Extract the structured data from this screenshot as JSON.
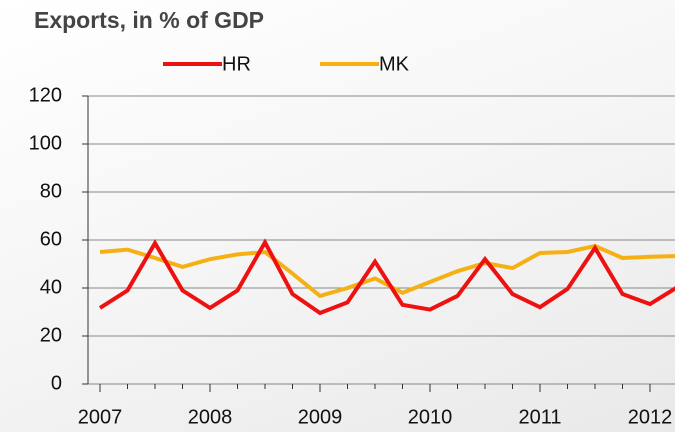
{
  "chart_data": {
    "type": "line",
    "title": "Exports, in % of GDP",
    "categories": [
      "2007",
      null,
      null,
      null,
      "2008",
      null,
      null,
      null,
      "2009",
      null,
      null,
      null,
      "2010",
      null,
      null,
      null,
      "2011",
      null,
      null,
      null,
      "2012",
      null
    ],
    "series": [
      {
        "name": "HR",
        "color": "#ee1111",
        "values": [
          31.7,
          39,
          58.7,
          39,
          31.7,
          39,
          59,
          37.5,
          29.6,
          34,
          51,
          33,
          31,
          36.7,
          52,
          37.5,
          32,
          39.6,
          56.7,
          37.5,
          33.3,
          40.4
        ]
      },
      {
        "name": "MK",
        "color": "#f5b014",
        "values": [
          55,
          56,
          52.5,
          48.8,
          52,
          54,
          55,
          46,
          36.7,
          40,
          44,
          38,
          42.5,
          47,
          50.4,
          48.3,
          54.6,
          55,
          57.5,
          52.5,
          53,
          53.3
        ]
      }
    ],
    "ylim": [
      0,
      120
    ],
    "yticks": [
      0,
      20,
      40,
      60,
      80,
      100,
      120
    ],
    "grid": true
  }
}
